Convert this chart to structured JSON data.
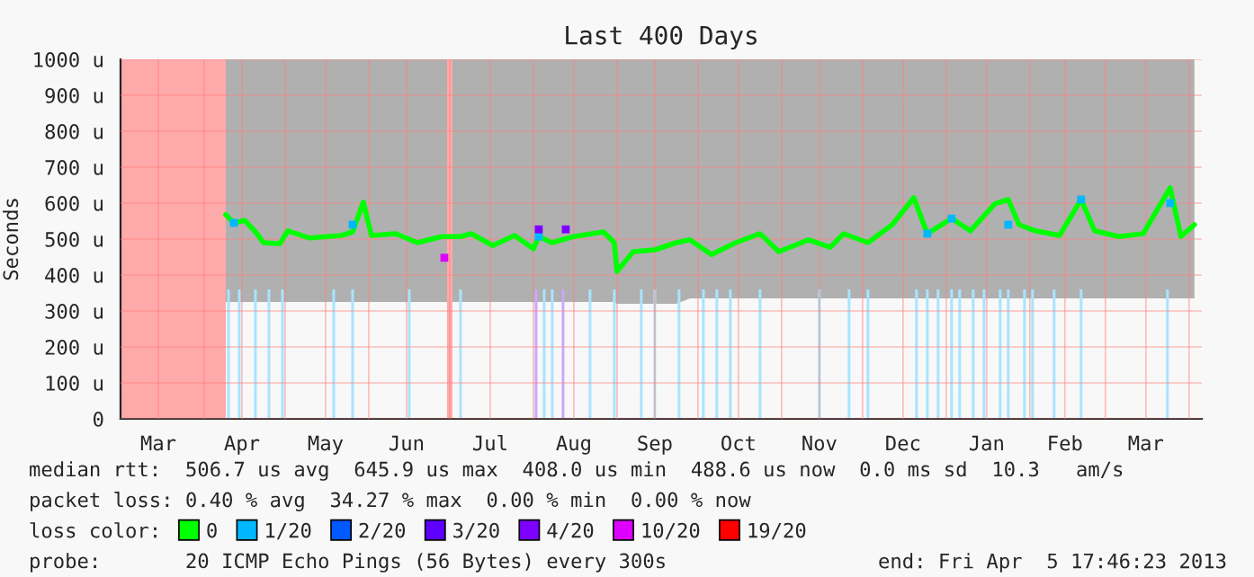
{
  "chart_data": {
    "type": "line",
    "title": "Last 400 Days",
    "ylabel": "Seconds",
    "xlim": [
      "2012-03-01",
      "2013-04-05T17:46"
    ],
    "xticks": [
      {
        "value": "2012-03-15",
        "label": "Mar"
      },
      {
        "value": "2012-04-01",
        "label": null
      },
      {
        "value": "2012-04-15",
        "label": "Apr"
      },
      {
        "value": "2012-05-01",
        "label": null
      },
      {
        "value": "2012-05-16",
        "label": "May"
      },
      {
        "value": "2012-06-01",
        "label": null
      },
      {
        "value": "2012-06-15",
        "label": "Jun"
      },
      {
        "value": "2012-07-01",
        "label": null
      },
      {
        "value": "2012-07-16",
        "label": "Jul"
      },
      {
        "value": "2012-08-01",
        "label": null
      },
      {
        "value": "2012-08-16",
        "label": "Aug"
      },
      {
        "value": "2012-09-01",
        "label": null
      },
      {
        "value": "2012-09-15",
        "label": "Sep"
      },
      {
        "value": "2012-10-01",
        "label": null
      },
      {
        "value": "2012-10-16",
        "label": "Oct"
      },
      {
        "value": "2012-11-01",
        "label": null
      },
      {
        "value": "2012-11-15",
        "label": "Nov"
      },
      {
        "value": "2012-12-01",
        "label": null
      },
      {
        "value": "2012-12-16",
        "label": "Dec"
      },
      {
        "value": "2013-01-01",
        "label": null
      },
      {
        "value": "2013-01-16",
        "label": "Jan"
      },
      {
        "value": "2013-02-01",
        "label": null
      },
      {
        "value": "2013-02-14",
        "label": "Feb"
      },
      {
        "value": "2013-03-01",
        "label": null
      },
      {
        "value": "2013-03-16",
        "label": "Mar"
      },
      {
        "value": "2013-04-01",
        "label": null
      }
    ],
    "ylim": [
      0,
      1000
    ],
    "yticks": [
      0,
      {
        "value": 100,
        "label": "100 u"
      },
      {
        "value": 200,
        "label": "200 u"
      },
      {
        "value": 300,
        "label": "300 u"
      },
      {
        "value": 400,
        "label": "400 u"
      },
      {
        "value": 500,
        "label": "500 u"
      },
      {
        "value": 600,
        "label": "600 u"
      },
      {
        "value": 700,
        "label": "700 u"
      },
      {
        "value": 800,
        "label": "800 u"
      },
      {
        "value": 900,
        "label": "900 u"
      },
      {
        "value": 1000,
        "label": "1000 u"
      }
    ],
    "grid": true,
    "legend": "bottom",
    "legend_title": "loss color:",
    "bands": [
      {
        "axis": "x",
        "from": "2012-03-01",
        "to": "2012-04-09",
        "color": "#ffaaaa"
      },
      {
        "axis": "x",
        "from": "2012-06-30",
        "to": "2012-07-02",
        "color": "#ffaaaa"
      }
    ],
    "series": [
      {
        "type": "bar",
        "color": "#a8e4ff",
        "x": [
          "2012-04-10",
          "2012-04-14",
          "2012-04-20",
          "2012-04-25",
          "2012-04-30",
          "2012-05-19",
          "2012-05-26",
          "2012-06-16",
          "2012-07-05",
          "2012-08-05",
          "2012-08-08",
          "2012-08-22",
          "2012-08-31",
          "2012-09-10",
          "2012-09-15",
          "2012-09-24",
          "2012-10-03",
          "2012-10-08",
          "2012-10-13",
          "2012-10-24",
          "2012-11-15",
          "2012-11-26",
          "2012-12-03",
          "2012-12-21",
          "2012-12-25",
          "2012-12-29",
          "2013-01-03",
          "2013-01-06",
          "2013-01-11",
          "2013-01-15",
          "2013-01-21",
          "2013-01-24",
          "2013-01-30",
          "2013-02-02",
          "2013-02-10",
          "2013-02-20",
          "2013-03-24"
        ],
        "values": [
          360,
          360,
          360,
          360,
          360,
          360,
          360,
          360,
          360,
          360,
          360,
          360,
          360,
          360,
          360,
          360,
          360,
          360,
          360,
          360,
          360,
          360,
          360,
          360,
          360,
          360,
          360,
          360,
          360,
          360,
          360,
          360,
          360,
          360,
          360,
          360,
          360
        ]
      },
      {
        "type": "bar",
        "color": "#c8a8ff",
        "x": [
          "2012-08-02",
          "2012-08-12"
        ],
        "values": [
          360,
          360
        ]
      },
      {
        "name": "0",
        "color": "#00ff00",
        "x": [
          "2012-04-09",
          "2012-04-12",
          "2012-04-16",
          "2012-04-20",
          "2012-04-23",
          "2012-04-29",
          "2012-05-02",
          "2012-05-10",
          "2012-05-22",
          "2012-05-26",
          "2012-05-30",
          "2012-06-02",
          "2012-06-11",
          "2012-06-19",
          "2012-06-28",
          "2012-07-05",
          "2012-07-09",
          "2012-07-17",
          "2012-07-25",
          "2012-08-01",
          "2012-08-03",
          "2012-08-08",
          "2012-08-16",
          "2012-08-27",
          "2012-08-31",
          "2012-09-01",
          "2012-09-07",
          "2012-09-15",
          "2012-09-23",
          "2012-09-28",
          "2012-10-06",
          "2012-10-15",
          "2012-10-24",
          "2012-10-31",
          "2012-11-11",
          "2012-11-19",
          "2012-11-24",
          "2012-12-03",
          "2012-12-12",
          "2012-12-20",
          "2012-12-25",
          "2013-01-03",
          "2013-01-10",
          "2013-01-19",
          "2013-01-24",
          "2013-01-28",
          "2013-02-03",
          "2013-02-12",
          "2013-02-20",
          "2013-02-25",
          "2013-03-06",
          "2013-03-15",
          "2013-03-25",
          "2013-03-29",
          "2013-04-03"
        ],
        "values": [
          568,
          545,
          552,
          520,
          490,
          487,
          523,
          503,
          510,
          520,
          603,
          510,
          515,
          490,
          507,
          507,
          515,
          482,
          510,
          473,
          507,
          490,
          507,
          520,
          490,
          410,
          465,
          470,
          490,
          498,
          457,
          490,
          515,
          465,
          498,
          477,
          515,
          490,
          540,
          615,
          515,
          557,
          523,
          598,
          610,
          540,
          523,
          510,
          610,
          523,
          507,
          515,
          643,
          507,
          540
        ],
        "lower": [
          325,
          325,
          325,
          325,
          325,
          325,
          325,
          325,
          325,
          325,
          325,
          325,
          325,
          325,
          325,
          325,
          325,
          325,
          325,
          325,
          325,
          325,
          325,
          325,
          325,
          320,
          320,
          320,
          320,
          335,
          335,
          335,
          335,
          335,
          335,
          335,
          335,
          335,
          335,
          335,
          335,
          335,
          335,
          335,
          335,
          335,
          335,
          335,
          335,
          335,
          335,
          335,
          335,
          335,
          335
        ],
        "upper": [
          1000,
          1000,
          1000,
          1000,
          1000,
          1000,
          1000,
          1000,
          1000,
          1000,
          1000,
          1000,
          1000,
          1000,
          1000,
          1000,
          1000,
          1000,
          1000,
          1000,
          1000,
          1000,
          1000,
          1000,
          1000,
          1000,
          1000,
          1000,
          1000,
          1000,
          1000,
          1000,
          1000,
          1000,
          1000,
          1000,
          1000,
          1000,
          1000,
          1000,
          1000,
          1000,
          1000,
          1000,
          1000,
          1000,
          1000,
          1000,
          1000,
          1000,
          1000,
          1000,
          1000,
          1000,
          1000
        ]
      },
      {
        "name": "1/20",
        "type": "scatter",
        "marker": "square",
        "color": "#00b8ff",
        "x": [
          "2012-04-12",
          "2012-05-26",
          "2012-08-03",
          "2012-12-25",
          "2013-01-03",
          "2013-01-24",
          "2013-02-20",
          "2013-03-25"
        ],
        "values": [
          545,
          540,
          507,
          515,
          557,
          540,
          610,
          600
        ]
      },
      {
        "name": "2/20",
        "type": "scatter",
        "marker": "square",
        "color": "#0059ff"
      },
      {
        "name": "3/20",
        "type": "scatter",
        "marker": "square",
        "color": "#5e00ff"
      },
      {
        "name": "4/20",
        "type": "scatter",
        "marker": "square",
        "color": "#7e00ff",
        "x": [
          "2012-08-03",
          "2012-08-13"
        ],
        "values": [
          527,
          527
        ]
      },
      {
        "name": "10/20",
        "type": "scatter",
        "marker": "square",
        "color": "#dd00ff",
        "x": [
          "2012-06-29"
        ],
        "values": [
          448
        ]
      },
      {
        "name": "19/20",
        "type": "scatter",
        "marker": "square",
        "color": "#ff0000"
      }
    ],
    "annotations": [
      "median rtt:  506.7 us avg  645.9 us max  408.0 us min  488.6 us now  0.0 ms sd  10.3   am/s",
      "packet loss: 0.40 % avg  34.27 % max  0.00 % min  0.00 % now",
      "probe:       20 ICMP Echo Pings (56 Bytes) every 300s",
      "end: Fri Apr  5 17:46:23 2013"
    ]
  }
}
